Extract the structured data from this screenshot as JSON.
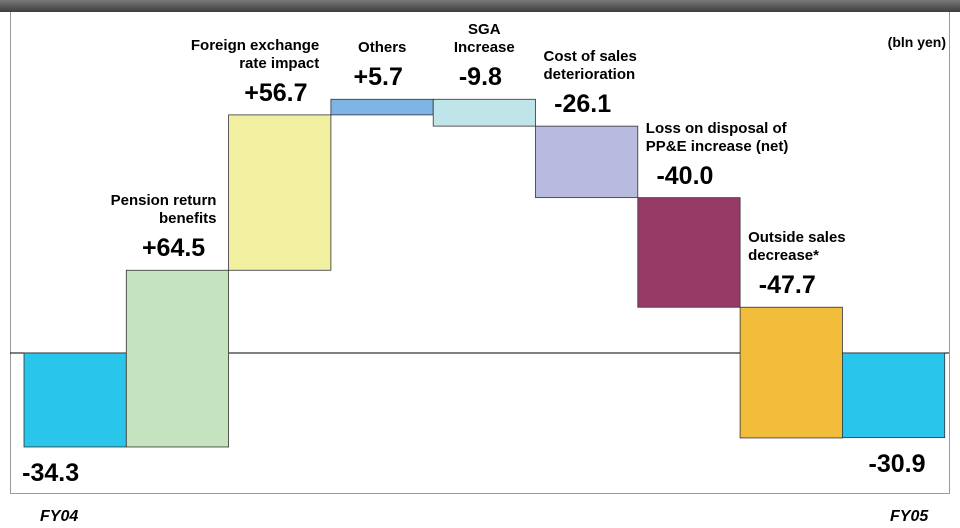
{
  "chart_data": {
    "type": "waterfall",
    "unit_label": "(bln yen)",
    "categories": [
      "FY04",
      "Pension return\nbenefits",
      "Foreign exchange\nrate impact",
      "Others",
      "SGA\nIncrease",
      "Cost of sales\ndeterioration",
      "Loss on disposal of\nPP&E increase (net)",
      "Outside sales\ndecrease*",
      "FY05"
    ],
    "values": [
      -34.3,
      64.5,
      56.7,
      5.7,
      -9.8,
      -26.1,
      -40.0,
      -47.7,
      -30.9
    ],
    "value_labels": [
      "-34.3",
      "+64.5",
      "+56.7",
      "+5.7",
      "-9.8",
      "-26.1",
      "-40.0",
      "-47.7",
      "-30.9"
    ],
    "colors": [
      "#29c5ea",
      "#c6e3c0",
      "#f0f0a0",
      "#7fb4e6",
      "#bfe4ea",
      "#b9badf",
      "#973a66",
      "#f2bd3a",
      "#29c5ea"
    ]
  }
}
